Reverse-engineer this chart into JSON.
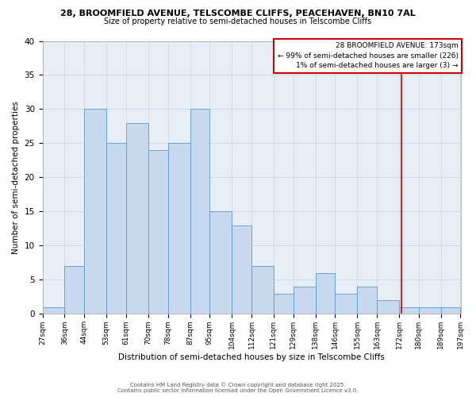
{
  "title1": "28, BROOMFIELD AVENUE, TELSCOMBE CLIFFS, PEACEHAVEN, BN10 7AL",
  "title2": "Size of property relative to semi-detached houses in Telscombe Cliffs",
  "xlabel": "Distribution of semi-detached houses by size in Telscombe Cliffs",
  "ylabel": "Number of semi-detached properties",
  "bin_labels": [
    "27sqm",
    "36sqm",
    "44sqm",
    "53sqm",
    "61sqm",
    "70sqm",
    "78sqm",
    "87sqm",
    "95sqm",
    "104sqm",
    "112sqm",
    "121sqm",
    "129sqm",
    "138sqm",
    "146sqm",
    "155sqm",
    "163sqm",
    "172sqm",
    "180sqm",
    "189sqm",
    "197sqm"
  ],
  "bar_heights": [
    1,
    7,
    30,
    25,
    28,
    24,
    25,
    30,
    15,
    13,
    7,
    3,
    4,
    6,
    3,
    4,
    2,
    1,
    1,
    1
  ],
  "bar_color": "#c8d9ed",
  "bar_edge_color": "#5b9bd5",
  "vline_x": 173,
  "vline_color": "#cc0000",
  "ylim": [
    0,
    40
  ],
  "yticks": [
    0,
    5,
    10,
    15,
    20,
    25,
    30,
    35,
    40
  ],
  "grid_color": "#d0d8e8",
  "bg_color": "#e8eef5",
  "annotation_title": "28 BROOMFIELD AVENUE: 173sqm",
  "annotation_line1": "← 99% of semi-detached houses are smaller (226)",
  "annotation_line2": "1% of semi-detached houses are larger (3) →",
  "footer1": "Contains HM Land Registry data © Crown copyright and database right 2025.",
  "footer2": "Contains public sector information licensed under the Open Government Licence v3.0.",
  "bin_edges": [
    27,
    36,
    44,
    53,
    61,
    70,
    78,
    87,
    95,
    104,
    112,
    121,
    129,
    138,
    146,
    155,
    163,
    172,
    180,
    189,
    197
  ]
}
